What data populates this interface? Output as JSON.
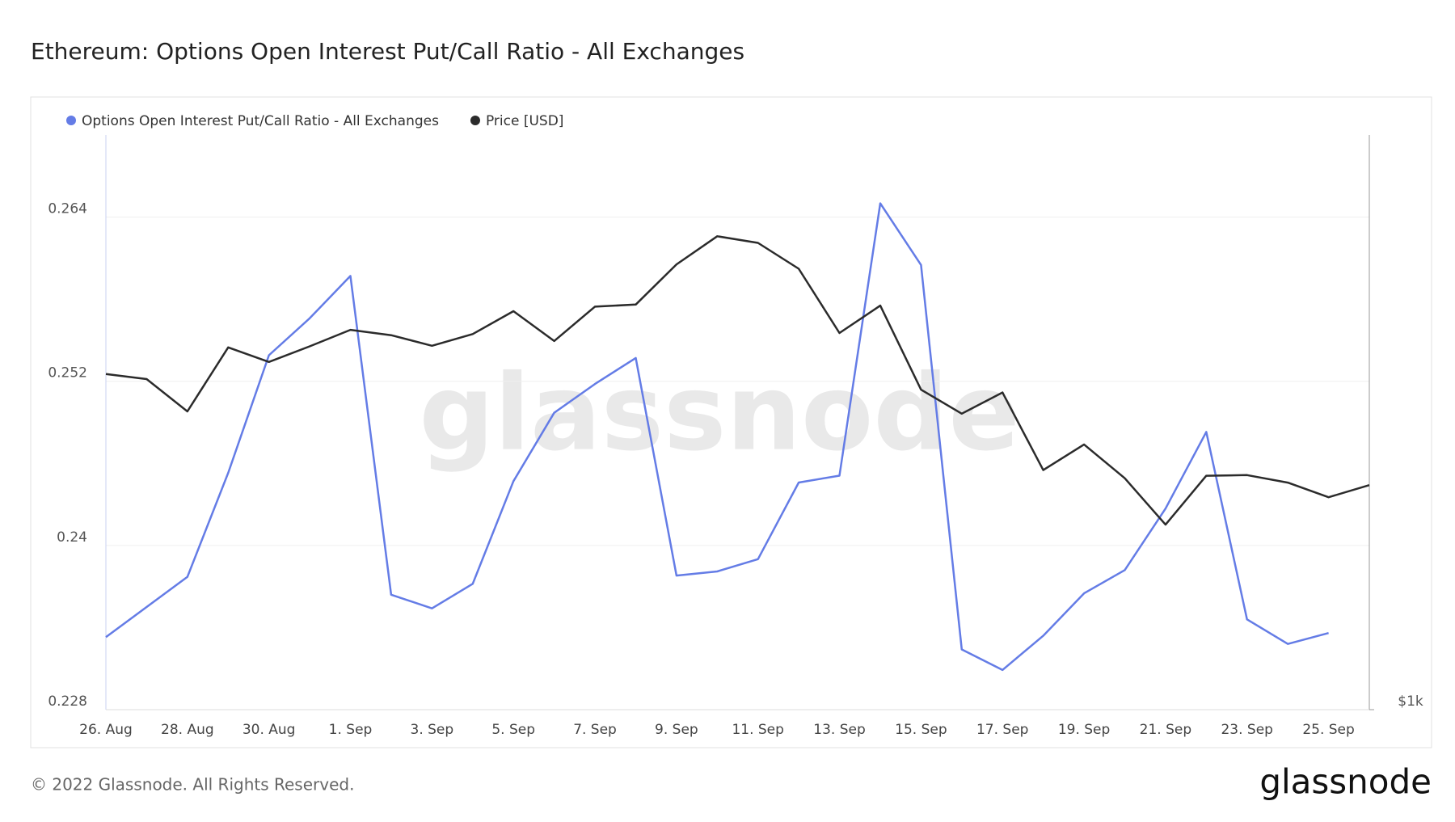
{
  "chart_data": {
    "type": "line",
    "title": "Ethereum: Options Open Interest Put/Call Ratio - All Exchanges",
    "categories": [
      "26. Aug",
      null,
      "28. Aug",
      null,
      "30. Aug",
      null,
      "1. Sep",
      null,
      "3. Sep",
      null,
      "5. Sep",
      null,
      "7. Sep",
      null,
      "9. Sep",
      null,
      "11. Sep",
      null,
      "13. Sep",
      null,
      "15. Sep",
      null,
      "17. Sep",
      null,
      "19. Sep",
      null,
      "21. Sep",
      null,
      "23. Sep",
      null,
      "25. Sep",
      null
    ],
    "series": [
      {
        "name": "Options Open Interest Put/Call Ratio - All Exchanges",
        "color": "#647ce6",
        "values": [
          0.2333,
          0.2355,
          0.2377,
          0.2453,
          0.2539,
          0.2566,
          0.2597,
          0.2364,
          0.2354,
          0.2372,
          0.2447,
          0.2497,
          0.2518,
          0.2537,
          0.2378,
          0.2381,
          0.239,
          0.2446,
          0.2451,
          0.265,
          0.2605,
          0.2324,
          0.2309,
          0.2334,
          0.2365,
          0.2382,
          0.2427,
          0.2483,
          0.2346,
          0.2328,
          0.2336,
          null
        ]
      },
      {
        "name": "Price [USD]",
        "color": "#2b2b2b",
        "axis": "y2",
        "values": [
          1499,
          1490,
          1433,
          1548,
          1521,
          1550,
          1581,
          1571,
          1551,
          1573,
          1617,
          1560,
          1626,
          1630,
          1711,
          1770,
          1756,
          1702,
          1575,
          1628,
          1471,
          1429,
          1466,
          1335,
          1377,
          1322,
          1250,
          1326,
          1327,
          1315,
          1292,
          1311
        ]
      }
    ],
    "ylim": [
      0.228,
      0.27
    ],
    "yticks": [
      0.228,
      0.24,
      0.252,
      0.264
    ],
    "y2lim": [
      1000,
      2000
    ],
    "y2ticks": [
      {
        "value": 1000,
        "label": "$1k"
      }
    ],
    "y2log": true,
    "grid": true,
    "watermark": "glassnode",
    "footer": "© 2022 Glassnode. All Rights Reserved.",
    "logo": "glassnode"
  }
}
